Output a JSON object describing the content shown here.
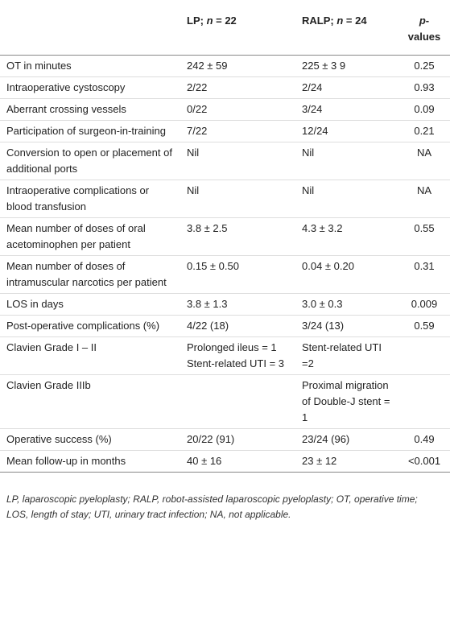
{
  "table": {
    "header": [
      [
        "LP; ",
        "n",
        " = 22"
      ],
      [
        "RALP; ",
        "n",
        " = 24"
      ],
      [
        "p",
        "-values"
      ]
    ],
    "rows": [
      [
        "OT in minutes",
        "242 ± 59",
        "225 ± 3 9",
        "0.25"
      ],
      [
        "Intraoperative cystoscopy",
        "2/22",
        "2/24",
        "0.93"
      ],
      [
        "Aberrant crossing vessels",
        "0/22",
        "3/24",
        "0.09"
      ],
      [
        "Participation of surgeon-in-training",
        "7/22",
        "12/24",
        "0.21"
      ],
      [
        "Conversion to open or placement of additional ports",
        "Nil",
        "Nil",
        "NA"
      ],
      [
        "Intraoperative complications or blood transfusion",
        "Nil",
        "Nil",
        "NA"
      ],
      [
        "Mean number of doses of oral acetominophen per patient",
        "3.8 ± 2.5",
        "4.3 ± 3.2",
        "0.55"
      ],
      [
        "Mean number of doses of intramuscular narcotics per patient",
        "0.15 ± 0.50",
        "0.04 ± 0.20",
        "0.31"
      ],
      [
        "LOS in days",
        "3.8 ± 1.3",
        "3.0 ± 0.3",
        "0.009"
      ],
      [
        "Post-operative complications (%)",
        "4/22 (18)",
        "3/24 (13)",
        "0.59"
      ],
      [
        "Clavien Grade I – II",
        "Prolonged ileus = 1 Stent-related UTI = 3",
        "Stent-related UTI =2",
        null
      ],
      [
        "Clavien Grade IIIb",
        null,
        "Proximal migration of Double-J stent = 1",
        null
      ],
      [
        "Operative success (%)",
        "20/22 (91)",
        "23/24 (96)",
        "0.49"
      ],
      [
        "Mean follow-up in months",
        "40 ± 16",
        "23 ± 12",
        "<0.001"
      ]
    ]
  },
  "footnote": "LP, laparoscopic pyeloplasty; RALP, robot-assisted laparoscopic pyeloplasty; OT, operative time; LOS, length of stay; UTI, urinary tract infection; NA, not applicable."
}
